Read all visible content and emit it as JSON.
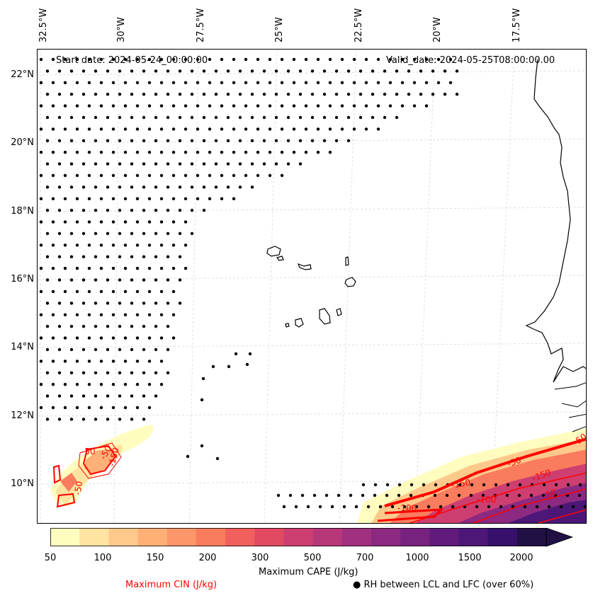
{
  "header": {
    "start_date": "Start date: 2024-05-24_00:00:00",
    "valid_date": "Valid_date: 2024-05-25T08:00:00.00"
  },
  "lon_labels": [
    "32.5°W",
    "30°W",
    "27.5°W",
    "25°W",
    "22.5°W",
    "20°W",
    "17.5°W"
  ],
  "lat_labels": [
    "22°N",
    "20°N",
    "18°N",
    "16°N",
    "14°N",
    "12°N",
    "10°N"
  ],
  "colorbar": {
    "ticks": [
      "50",
      "100",
      "150",
      "200",
      "300",
      "500",
      "700",
      "1000",
      "1500",
      "2000"
    ],
    "colors": [
      "#fefdbf",
      "#fee3a1",
      "#fec98b",
      "#feb077",
      "#fd9668",
      "#fa7c5e",
      "#f1605d",
      "#e24a62",
      "#cd3f71",
      "#b73779",
      "#a1307e",
      "#8c2981",
      "#77227f",
      "#611b7c",
      "#4c1777",
      "#36106b",
      "#211044"
    ],
    "label": "Maximum CAPE (J/kg)"
  },
  "legend": {
    "cin_label": "Maximum CIN (J/kg)",
    "cin_color": "#ff0000",
    "rh_label": "● RH between LCL and LFC (over 60%)"
  },
  "contour_labels": [
    "-50",
    "-50",
    "-150",
    "-50",
    "-50",
    "-50",
    "-100",
    "-150",
    "-150",
    "-100",
    "-50"
  ]
}
